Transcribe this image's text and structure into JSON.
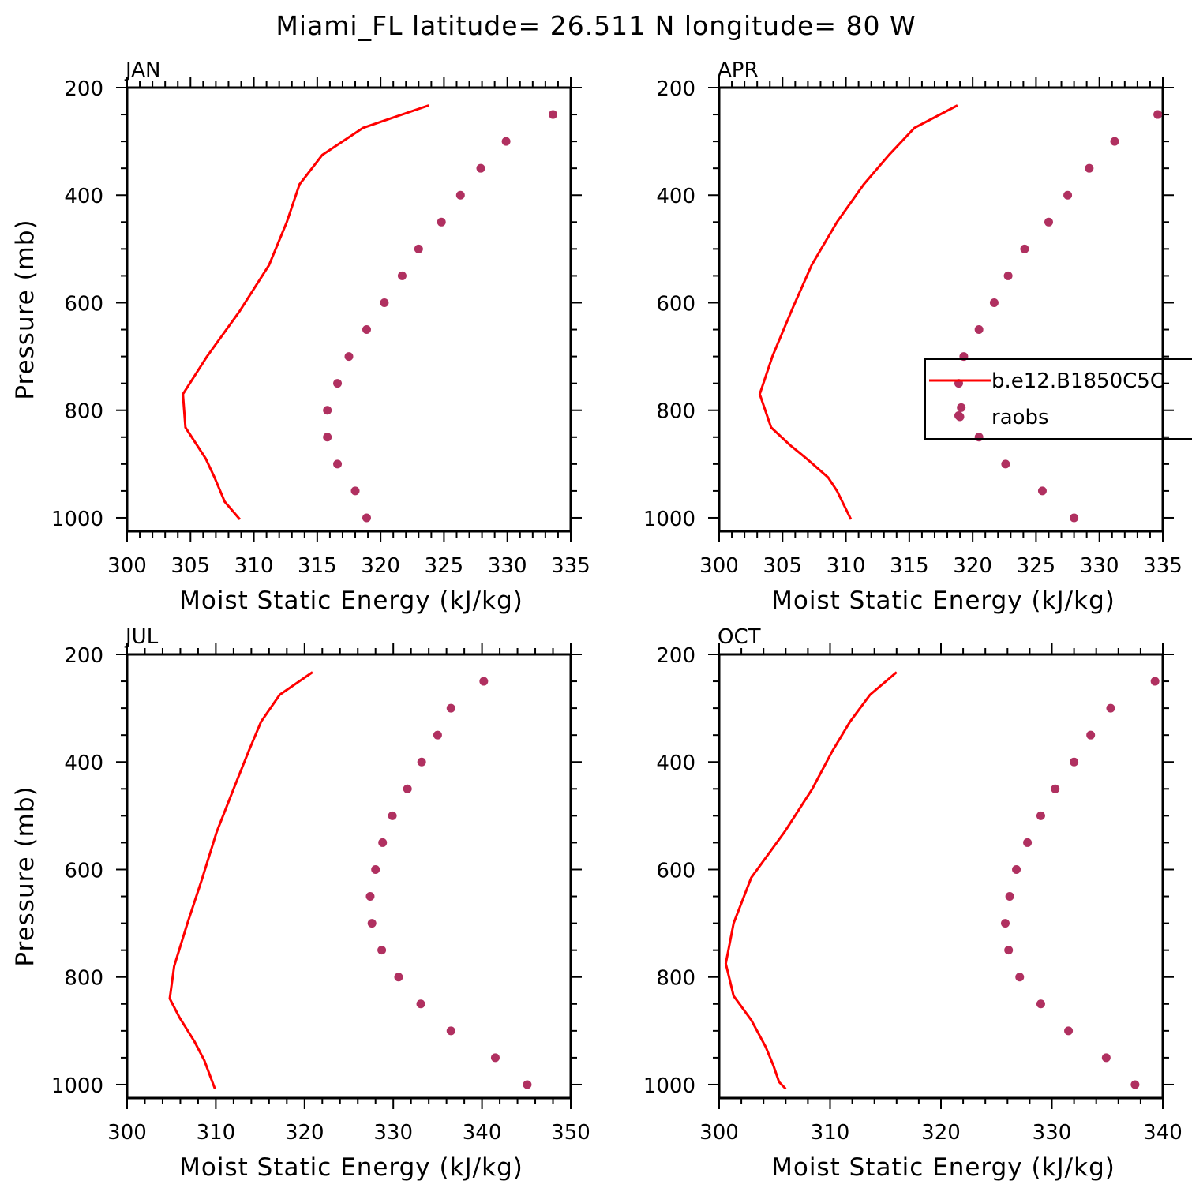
{
  "figure": {
    "title": "Miami_FL  latitude= 26.511 N longitude= 80 W"
  },
  "colors": {
    "model_line": "#ff0000",
    "raobs_marker": "#b03060",
    "axis": "#000000"
  },
  "legend": {
    "panel": "APR",
    "placement": "right-middle",
    "entries": [
      {
        "label": "b.e12.B1850C5C",
        "style": "line",
        "color": "#ff0000"
      },
      {
        "label": "raobs",
        "style": "marker",
        "color": "#b03060"
      }
    ]
  },
  "chart_data": [
    {
      "type": "line+scatter",
      "title": "JAN",
      "xlabel": "Moist Static Energy (kJ/kg)",
      "ylabel": "Pressure (mb)",
      "xlim": [
        300,
        335
      ],
      "ylim": [
        1025,
        200
      ],
      "xticks": [
        300,
        305,
        310,
        315,
        320,
        325,
        330,
        335
      ],
      "yticks": [
        200,
        400,
        600,
        800,
        1000
      ],
      "series": [
        {
          "name": "b.e12.B1850C5C",
          "kind": "line",
          "x": [
            323.8,
            318.6,
            315.4,
            313.6,
            312.6,
            311.2,
            308.9,
            306.3,
            304.4,
            304.6,
            306.2,
            306.9,
            307.7,
            308.9
          ],
          "y": [
            233,
            275,
            325,
            380,
            450,
            530,
            615,
            700,
            770,
            832,
            890,
            925,
            970,
            1003
          ]
        },
        {
          "name": "raobs",
          "kind": "scatter",
          "x": [
            333.6,
            329.9,
            327.9,
            326.3,
            324.8,
            323.0,
            321.7,
            320.3,
            318.9,
            317.5,
            316.6,
            315.8,
            315.8,
            316.6,
            318.0,
            318.9
          ],
          "y": [
            250,
            300,
            350,
            400,
            450,
            500,
            550,
            600,
            650,
            700,
            750,
            800,
            850,
            900,
            950,
            1000
          ]
        }
      ]
    },
    {
      "type": "line+scatter",
      "title": "APR",
      "xlabel": "Moist Static Energy (kJ/kg)",
      "ylabel": "",
      "xlim": [
        300,
        335
      ],
      "ylim": [
        1025,
        200
      ],
      "xticks": [
        300,
        305,
        310,
        315,
        320,
        325,
        330,
        335
      ],
      "yticks": [
        200,
        400,
        600,
        800,
        1000
      ],
      "series": [
        {
          "name": "b.e12.B1850C5C",
          "kind": "line",
          "x": [
            318.8,
            315.4,
            313.4,
            311.4,
            309.3,
            307.3,
            305.8,
            304.2,
            303.2,
            304.1,
            305.6,
            306.9,
            308.6,
            309.3,
            310.4
          ],
          "y": [
            233,
            275,
            325,
            380,
            450,
            530,
            610,
            700,
            770,
            832,
            865,
            890,
            925,
            950,
            1003
          ]
        },
        {
          "name": "raobs",
          "kind": "scatter",
          "x": [
            334.6,
            331.2,
            329.2,
            327.5,
            326.0,
            324.1,
            322.8,
            321.7,
            320.5,
            319.3,
            318.9,
            319.1,
            318.9,
            320.5,
            322.6,
            325.5,
            328.0
          ],
          "y": [
            250,
            300,
            350,
            400,
            450,
            500,
            550,
            600,
            650,
            700,
            750,
            795,
            810,
            850,
            900,
            950,
            1000
          ]
        }
      ]
    },
    {
      "type": "line+scatter",
      "title": "JUL",
      "xlabel": "Moist Static Energy (kJ/kg)",
      "ylabel": "Pressure (mb)",
      "xlim": [
        300,
        350
      ],
      "ylim": [
        1025,
        200
      ],
      "xticks": [
        300,
        310,
        320,
        330,
        340,
        350
      ],
      "yticks": [
        200,
        400,
        600,
        800,
        1000
      ],
      "series": [
        {
          "name": "b.e12.B1850C5C",
          "kind": "line",
          "x": [
            320.9,
            317.2,
            315.1,
            313.7,
            312.0,
            310.1,
            308.4,
            306.8,
            305.3,
            304.8,
            305.9,
            307.6,
            308.7,
            309.9
          ],
          "y": [
            233,
            275,
            325,
            380,
            450,
            530,
            620,
            700,
            780,
            840,
            875,
            920,
            955,
            1008
          ]
        },
        {
          "name": "raobs",
          "kind": "scatter",
          "x": [
            340.2,
            336.5,
            335.0,
            333.2,
            331.6,
            329.9,
            328.8,
            328.0,
            327.4,
            327.6,
            328.7,
            330.6,
            333.1,
            336.5,
            341.5,
            345.1
          ],
          "y": [
            250,
            300,
            350,
            400,
            450,
            500,
            550,
            600,
            650,
            700,
            750,
            800,
            850,
            900,
            950,
            1000
          ]
        }
      ]
    },
    {
      "type": "line+scatter",
      "title": "OCT",
      "xlabel": "Moist Static Energy (kJ/kg)",
      "ylabel": "",
      "xlim": [
        300,
        340
      ],
      "ylim": [
        1025,
        200
      ],
      "xticks": [
        300,
        310,
        320,
        330,
        340
      ],
      "yticks": [
        200,
        400,
        600,
        800,
        1000
      ],
      "series": [
        {
          "name": "b.e12.B1850C5C",
          "kind": "line",
          "x": [
            316.0,
            313.6,
            311.8,
            310.2,
            308.4,
            305.9,
            302.9,
            301.3,
            300.6,
            301.3,
            302.9,
            304.2,
            304.9,
            305.4,
            306.0
          ],
          "y": [
            233,
            275,
            325,
            380,
            450,
            530,
            615,
            700,
            775,
            835,
            880,
            930,
            965,
            995,
            1008
          ]
        },
        {
          "name": "raobs",
          "kind": "scatter",
          "x": [
            339.3,
            335.3,
            333.5,
            332.0,
            330.3,
            329.0,
            327.8,
            326.8,
            326.2,
            325.8,
            326.1,
            327.1,
            329.0,
            331.5,
            334.9,
            337.5
          ],
          "y": [
            250,
            300,
            350,
            400,
            450,
            500,
            550,
            600,
            650,
            700,
            750,
            800,
            850,
            900,
            950,
            1000
          ]
        }
      ]
    }
  ]
}
